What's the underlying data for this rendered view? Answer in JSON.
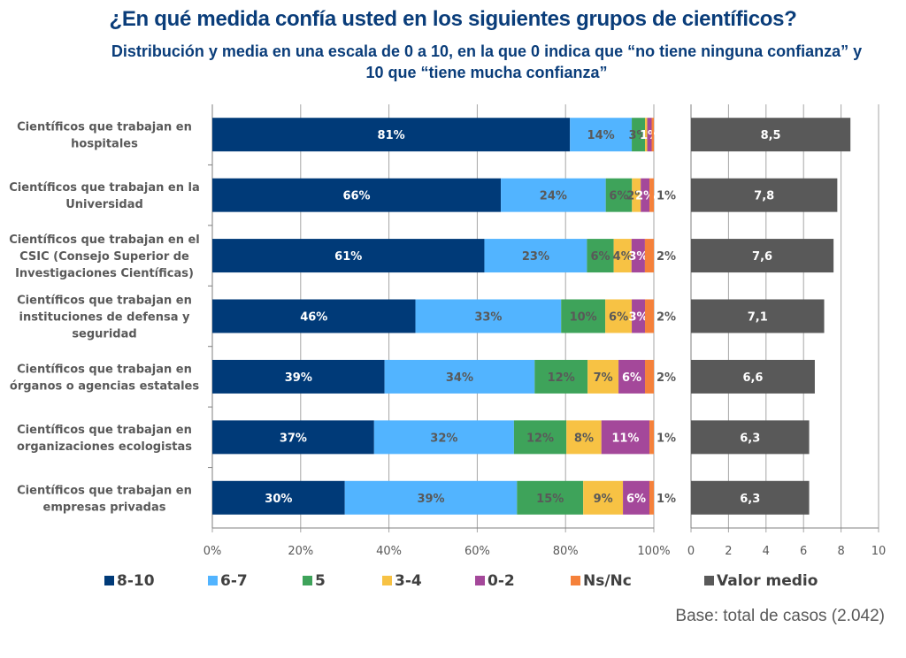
{
  "title": "¿En qué medida confía usted en los siguientes grupos de científicos?",
  "subtitle": "Distribución y media en una escala de 0 a 10, en la que 0 indica que “no tiene ninguna confianza” y 10 que “tiene mucha confianza”",
  "base_note": "Base: total de casos (2.042)",
  "chart_data": [
    {
      "type": "bar",
      "orientation": "horizontal",
      "stacked": true,
      "title": "Distribución",
      "categories": [
        "Científicos que trabajan en hospitales",
        "Científicos que trabajan en la Universidad",
        "Científicos que trabajan en el CSIC (Consejo Superior de Investigaciones Científicas)",
        "Científicos que trabajan en instituciones de defensa y seguridad",
        "Científicos que trabajan en órganos o agencias estatales",
        "Científicos que trabajan en organizaciones ecologistas",
        "Científicos que trabajan en empresas privadas"
      ],
      "category_lines": [
        [
          "Científicos que trabajan en",
          "hospitales"
        ],
        [
          "Científicos que trabajan en la",
          "Universidad"
        ],
        [
          "Científicos que trabajan en el",
          "CSIC (Consejo Superior de",
          "Investigaciones Científicas)"
        ],
        [
          "Científicos que trabajan en",
          "instituciones de defensa y",
          "seguridad"
        ],
        [
          "Científicos que trabajan en",
          "órganos o agencias estatales"
        ],
        [
          "Científicos que trabajan en",
          "organizaciones ecologistas"
        ],
        [
          "Científicos que trabajan en",
          "empresas privadas"
        ]
      ],
      "series": [
        {
          "name": "8-10",
          "color": "#003a78",
          "label_color": "#ffffff",
          "values": [
            81,
            66,
            61,
            46,
            39,
            37,
            30
          ]
        },
        {
          "name": "6-7",
          "color": "#52b4ff",
          "label_color": "#595959",
          "values": [
            14,
            24,
            23,
            33,
            34,
            32,
            39
          ]
        },
        {
          "name": "5",
          "color": "#3ea35a",
          "label_color": "#595959",
          "values": [
            3,
            6,
            6,
            10,
            12,
            12,
            15
          ]
        },
        {
          "name": "3-4",
          "color": "#f7c244",
          "label_color": "#ffffff",
          "values": [
            0.5,
            2,
            4,
            6,
            7,
            8,
            9
          ]
        },
        {
          "name": "0-2",
          "color": "#a4489a",
          "label_color": "#ffffff",
          "values": [
            1,
            2,
            3,
            3,
            6,
            11,
            6
          ]
        },
        {
          "name": "Ns/Nc",
          "color": "#f5813a",
          "label_color": "#595959",
          "values": [
            0.5,
            1,
            2,
            2,
            2,
            1,
            1
          ]
        }
      ],
      "segment_labels": [
        [
          "81%",
          "14%",
          "3%",
          "",
          "1%",
          ""
        ],
        [
          "66%",
          "24%",
          "6%",
          "2%",
          "2%",
          "1%"
        ],
        [
          "61%",
          "23%",
          "6%",
          "4%",
          "3%",
          "2%"
        ],
        [
          "46%",
          "33%",
          "10%",
          "6%",
          "3%",
          "2%"
        ],
        [
          "39%",
          "34%",
          "12%",
          "7%",
          "6%",
          "2%"
        ],
        [
          "37%",
          "32%",
          "12%",
          "8%",
          "11%",
          "1%"
        ],
        [
          "30%",
          "39%",
          "15%",
          "9%",
          "6%",
          "1%"
        ]
      ],
      "label_colors_by_series": [
        "#ffffff",
        "#595959",
        "#595959",
        "#595959",
        "#ffffff",
        "#595959"
      ],
      "xlim": [
        0,
        100
      ],
      "xticks": [
        "0%",
        "20%",
        "40%",
        "60%",
        "80%",
        "100%"
      ],
      "grid": true
    },
    {
      "type": "bar",
      "orientation": "horizontal",
      "title": "Valor medio",
      "series": [
        {
          "name": "Valor medio",
          "color": "#595959",
          "values": [
            8.5,
            7.8,
            7.6,
            7.1,
            6.6,
            6.3,
            6.3
          ]
        }
      ],
      "value_labels": [
        "8,5",
        "7,8",
        "7,6",
        "7,1",
        "6,6",
        "6,3",
        "6,3"
      ],
      "xlim": [
        0,
        10
      ],
      "xticks": [
        "0",
        "2",
        "4",
        "6",
        "8",
        "10"
      ],
      "grid": true
    }
  ],
  "legend": {
    "placement": "bottom",
    "items": [
      {
        "name": "8-10",
        "color": "#003a78"
      },
      {
        "name": "6-7",
        "color": "#52b4ff"
      },
      {
        "name": "5",
        "color": "#3ea35a"
      },
      {
        "name": "3-4",
        "color": "#f7c244"
      },
      {
        "name": "0-2",
        "color": "#a4489a"
      },
      {
        "name": "Ns/Nc",
        "color": "#f5813a"
      },
      {
        "name": "Valor medio",
        "color": "#595959"
      }
    ]
  }
}
